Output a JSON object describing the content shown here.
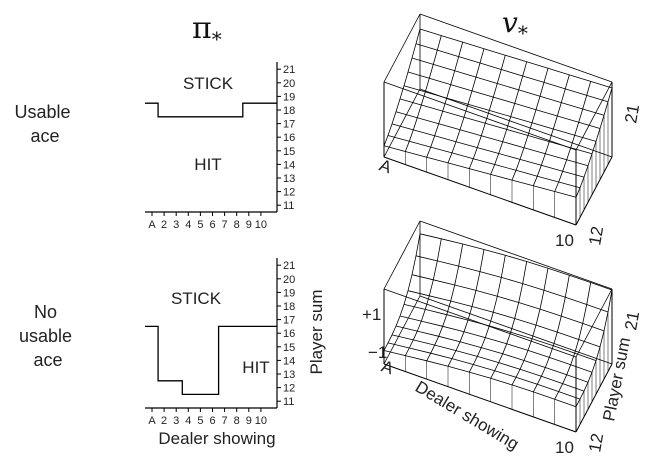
{
  "headers": {
    "policy": "π",
    "policy_sub": "*",
    "value": "v",
    "value_sub": "*"
  },
  "rows": [
    {
      "label_lines": [
        "Usable",
        "ace"
      ]
    },
    {
      "label_lines": [
        "No",
        "usable",
        "ace"
      ]
    }
  ],
  "policy": {
    "dealer_ticks": [
      "A",
      "2",
      "3",
      "4",
      "5",
      "6",
      "7",
      "8",
      "9",
      "10"
    ],
    "player_ticks": [
      "11",
      "12",
      "13",
      "14",
      "15",
      "16",
      "17",
      "18",
      "19",
      "20",
      "21"
    ],
    "y_axis_label": "Player sum",
    "x_axis_label": "Dealer showing",
    "stick_label": "STICK",
    "hit_label": "HIT",
    "usable_ace_threshold": [
      18.5,
      17.5,
      17.5,
      17.5,
      17.5,
      17.5,
      17.5,
      17.5,
      18.5,
      18.5
    ],
    "no_usable_ace_threshold": [
      16.5,
      12.5,
      12.5,
      11.5,
      11.5,
      11.5,
      16.5,
      16.5,
      16.5,
      16.5
    ]
  },
  "value": {
    "corner_dealer_start": "A",
    "corner_dealer_end": "10",
    "corner_player_start": "12",
    "corner_player_end": "21",
    "z_max_label": "+1",
    "z_min_label": "−1",
    "x_axis_label": "Dealer showing",
    "y_axis_label": "Player sum"
  }
}
